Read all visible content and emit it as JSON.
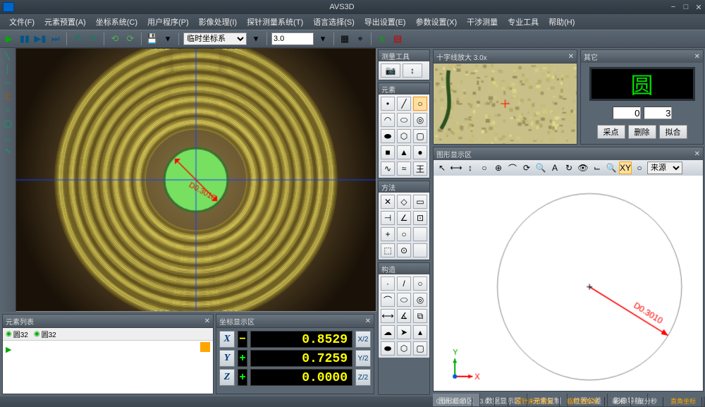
{
  "app": {
    "title": "AVS3D"
  },
  "menu": {
    "items": [
      "文件(F)",
      "元素预置(A)",
      "坐标系统(C)",
      "用户程序(P)",
      "影像处理(I)",
      "探针测量系统(T)",
      "语言选择(S)",
      "导出设置(E)",
      "参数设置(X)",
      "干涉测量",
      "专业工具",
      "帮助(H)"
    ]
  },
  "toolbar": {
    "coord_sys": "临时坐标系",
    "zoom": "3.0",
    "play_color": "#00aa00",
    "pause_color": "#005588",
    "stop_color": "#005588",
    "save_color": "#2255dd"
  },
  "panels": {
    "measure_tools": "测量工具",
    "elements": "元素",
    "method": "方法",
    "construct": "构造",
    "element_list": "元素列表",
    "coord_display": "坐标显示区",
    "magnifier": "十字线放大  3.0x",
    "qita": "其它",
    "graphics": "图形显示区"
  },
  "element_list": {
    "tab1_icon": "◉",
    "tab1_label": "圆32",
    "tab2_icon": "◉",
    "tab2_label": "圆32"
  },
  "coords": {
    "x_label": "X",
    "x_sign": "−",
    "x_val": "0.8529",
    "x_half": "X/2",
    "y_label": "Y",
    "y_sign": "+",
    "y_val": "0.7259",
    "y_half": "Y/2",
    "z_label": "Z",
    "z_sign": "+",
    "z_val": "0.0000",
    "z_half": "Z/2"
  },
  "qita": {
    "display": "圆",
    "input1": "0",
    "input2": "3",
    "btn1": "采点",
    "btn2": "删除",
    "btn3": "拟合"
  },
  "camera": {
    "dim_label": "D0.3010",
    "crosshair_color": "#1040ff",
    "dim_color": "#ff0000",
    "center_circle_color": "#78e060"
  },
  "graphics_toolbar": {
    "xy_btn": "XY",
    "combo": "来源",
    "circle_label": "D0.3010",
    "circle_color": "#ff0000",
    "x_axis": "X",
    "y_axis": "Y",
    "x_color": "#ff0000",
    "y_color": "#00aa00"
  },
  "gtabs": {
    "items": [
      "图形显示区",
      "数据显示区",
      "元素复制",
      "位置公差",
      "影像导航"
    ]
  },
  "status": {
    "time": "0:00:00:00",
    "zoom": "3.0",
    "probe": "探针未初始化",
    "coordsys": "临时坐标系",
    "unit": "毫米",
    "angle": "度分秒",
    "ortho": "直角坐标",
    "orange_color": "#ffa500"
  }
}
